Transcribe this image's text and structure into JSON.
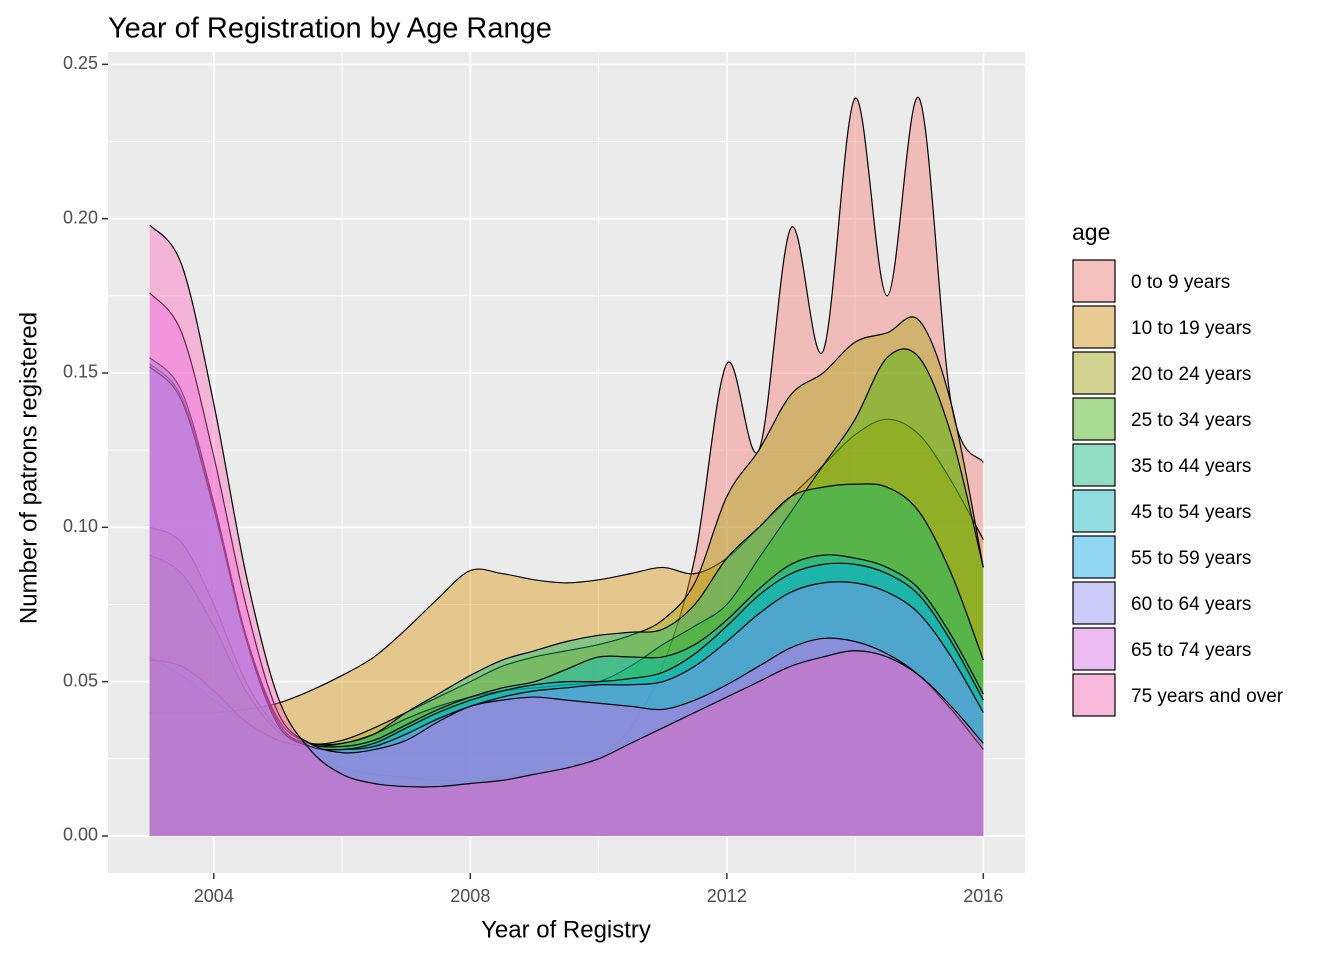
{
  "chart_data": {
    "type": "area",
    "title": "Year of Registration by Age Range",
    "x_label": "Year of Registry",
    "y_label": "Number of patrons registered",
    "legend_title": "age",
    "legend_position": "right",
    "grid": true,
    "fill_alpha": 0.4,
    "outline_color": "#000000",
    "xlim": [
      2002.35,
      2016.65
    ],
    "ylim": [
      -0.012,
      0.254
    ],
    "xticks": [
      2004,
      2008,
      2012,
      2016
    ],
    "yticks": [
      {
        "value": 0,
        "label": "0.00"
      },
      0.05,
      {
        "value": 0.1,
        "label": "0.10"
      },
      0.15,
      {
        "value": 0.2,
        "label": "0.20"
      },
      0.25
    ],
    "x_minor_grid": [
      2006,
      2010,
      2014
    ],
    "y_minor_grid": [
      0.025,
      0.075,
      0.125,
      0.175,
      0.225
    ],
    "x": [
      2003,
      2003.5,
      2004,
      2004.5,
      2005,
      2005.5,
      2006,
      2006.5,
      2007,
      2007.5,
      2008,
      2008.5,
      2009,
      2009.5,
      2010,
      2010.5,
      2011,
      2011.5,
      2012,
      2012.5,
      2013,
      2013.5,
      2014,
      2014.5,
      2015,
      2015.5,
      2016
    ],
    "series": [
      {
        "name": "0 to 9 years",
        "color": "#F8766D",
        "values": [
          0.058,
          0.052,
          0.044,
          0.037,
          0.031,
          0.026,
          0.022,
          0.02,
          0.019,
          0.018,
          0.018,
          0.019,
          0.02,
          0.022,
          0.025,
          0.035,
          0.055,
          0.09,
          0.153,
          0.125,
          0.197,
          0.157,
          0.239,
          0.175,
          0.239,
          0.14,
          0.121
        ]
      },
      {
        "name": "10 to 19 years",
        "color": "#D89000",
        "values": [
          0.04,
          0.04,
          0.04,
          0.041,
          0.043,
          0.047,
          0.052,
          0.058,
          0.067,
          0.077,
          0.086,
          0.085,
          0.083,
          0.082,
          0.083,
          0.085,
          0.087,
          0.085,
          0.09,
          0.1,
          0.11,
          0.12,
          0.13,
          0.135,
          0.13,
          0.115,
          0.096
        ]
      },
      {
        "name": "20 to 24 years",
        "color": "#A3A500",
        "values": [
          0.1,
          0.095,
          0.075,
          0.05,
          0.035,
          0.03,
          0.031,
          0.035,
          0.04,
          0.045,
          0.05,
          0.055,
          0.058,
          0.06,
          0.062,
          0.065,
          0.07,
          0.082,
          0.11,
          0.125,
          0.143,
          0.15,
          0.16,
          0.163,
          0.167,
          0.14,
          0.087
        ]
      },
      {
        "name": "25 to 34 years",
        "color": "#39B600",
        "values": [
          0.091,
          0.085,
          0.068,
          0.047,
          0.034,
          0.03,
          0.03,
          0.033,
          0.038,
          0.042,
          0.045,
          0.047,
          0.048,
          0.049,
          0.05,
          0.055,
          0.062,
          0.068,
          0.075,
          0.09,
          0.105,
          0.12,
          0.135,
          0.155,
          0.155,
          0.13,
          0.087
        ]
      },
      {
        "name": "35 to 44 years",
        "color": "#00BF7D",
        "values": [
          0.057,
          0.055,
          0.047,
          0.037,
          0.031,
          0.029,
          0.03,
          0.033,
          0.04,
          0.046,
          0.052,
          0.057,
          0.06,
          0.063,
          0.065,
          0.066,
          0.067,
          0.075,
          0.09,
          0.1,
          0.11,
          0.113,
          0.114,
          0.113,
          0.105,
          0.085,
          0.057
        ]
      },
      {
        "name": "45 to 54 years",
        "color": "#00BFC4",
        "values": [
          0.153,
          0.142,
          0.107,
          0.065,
          0.038,
          0.03,
          0.029,
          0.031,
          0.036,
          0.041,
          0.045,
          0.048,
          0.05,
          0.054,
          0.058,
          0.058,
          0.058,
          0.062,
          0.07,
          0.08,
          0.088,
          0.091,
          0.09,
          0.087,
          0.08,
          0.065,
          0.046
        ]
      },
      {
        "name": "55 to 59 years",
        "color": "#00B0F6",
        "values": [
          0.155,
          0.144,
          0.108,
          0.065,
          0.037,
          0.029,
          0.028,
          0.03,
          0.035,
          0.04,
          0.044,
          0.047,
          0.049,
          0.05,
          0.05,
          0.051,
          0.053,
          0.059,
          0.068,
          0.078,
          0.085,
          0.088,
          0.088,
          0.085,
          0.078,
          0.063,
          0.044
        ]
      },
      {
        "name": "60 to 64 years",
        "color": "#9590FF",
        "values": [
          0.152,
          0.141,
          0.106,
          0.064,
          0.036,
          0.029,
          0.028,
          0.029,
          0.033,
          0.038,
          0.042,
          0.045,
          0.047,
          0.048,
          0.049,
          0.049,
          0.05,
          0.055,
          0.063,
          0.072,
          0.079,
          0.082,
          0.082,
          0.079,
          0.072,
          0.058,
          0.04
        ]
      },
      {
        "name": "65 to 74 years",
        "color": "#E76BF3",
        "values": [
          0.176,
          0.163,
          0.123,
          0.075,
          0.04,
          0.03,
          0.027,
          0.028,
          0.031,
          0.037,
          0.042,
          0.044,
          0.045,
          0.044,
          0.043,
          0.042,
          0.041,
          0.044,
          0.049,
          0.055,
          0.061,
          0.064,
          0.063,
          0.059,
          0.052,
          0.041,
          0.028
        ]
      },
      {
        "name": "75 years and over",
        "color": "#FF62BC",
        "values": [
          0.198,
          0.185,
          0.14,
          0.085,
          0.045,
          0.028,
          0.02,
          0.017,
          0.016,
          0.016,
          0.017,
          0.018,
          0.02,
          0.022,
          0.025,
          0.03,
          0.035,
          0.04,
          0.045,
          0.05,
          0.055,
          0.058,
          0.06,
          0.058,
          0.052,
          0.042,
          0.03
        ]
      }
    ]
  }
}
